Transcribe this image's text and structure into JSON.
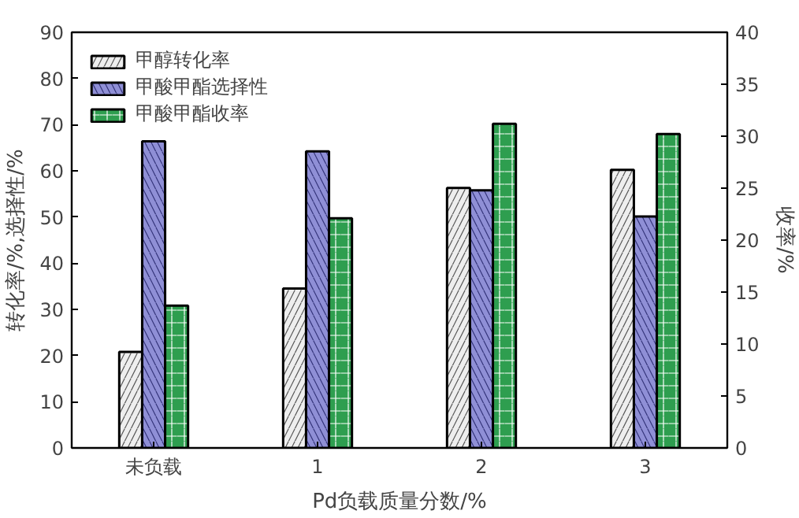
{
  "chart_data": {
    "type": "bar",
    "categories": [
      "未负载",
      "1",
      "2",
      "3"
    ],
    "xlabel": "Pd负载质量分数/%",
    "ylabel": "转化率/%,选择性/%",
    "y2label": "收率/%",
    "ylim": [
      0,
      90
    ],
    "yticks": [
      0,
      10,
      20,
      30,
      40,
      50,
      60,
      70,
      80,
      90
    ],
    "y2lim": [
      0,
      40
    ],
    "y2ticks": [
      0,
      5,
      10,
      15,
      20,
      25,
      30,
      35,
      40
    ],
    "legend": "top left",
    "grid": false,
    "series": [
      {
        "name": "甲醇转化率",
        "color": "#eeeeee",
        "values": [
          20.8,
          34.5,
          56.3,
          60.2
        ]
      },
      {
        "name": "甲酸甲酯选择性",
        "color": "#8f8fd6",
        "values": [
          66.4,
          64.2,
          55.8,
          50.1
        ]
      },
      {
        "name": "甲酸甲酯收率",
        "color": "#2e9e4f",
        "values": [
          13.7,
          22.1,
          31.2,
          30.2
        ],
        "axis": "y2"
      }
    ]
  }
}
